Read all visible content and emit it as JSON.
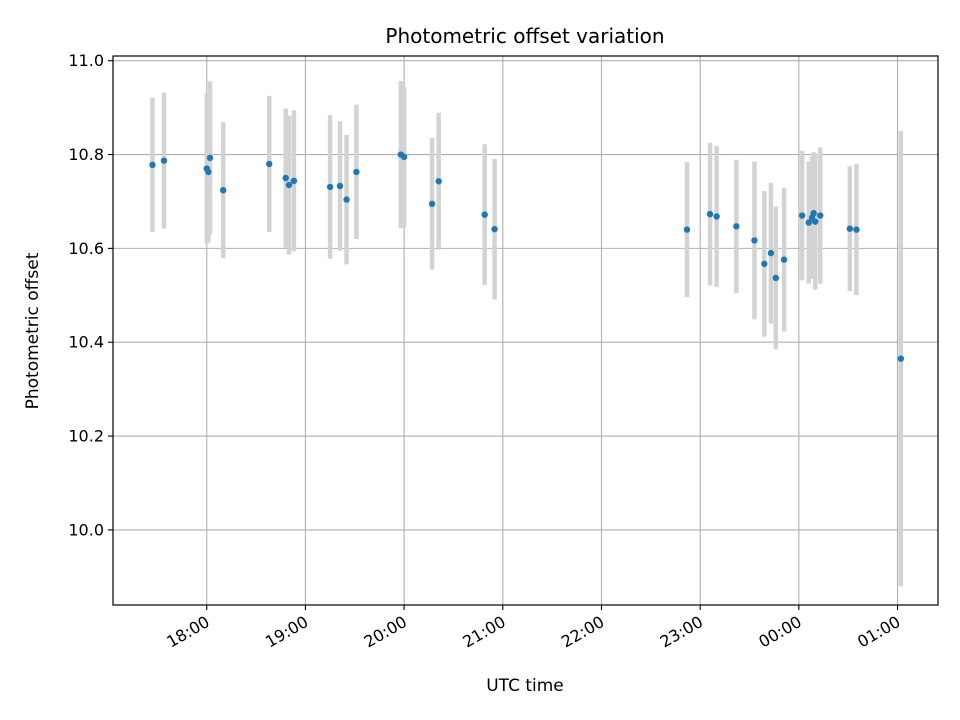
{
  "chart_data": {
    "type": "scatter",
    "title": "Photometric offset variation",
    "xlabel": "UTC time",
    "ylabel": "Photometric offset",
    "x_axis_kind": "time",
    "x_ticks": [
      "18:00",
      "19:00",
      "20:00",
      "21:00",
      "22:00",
      "23:00",
      "00:00",
      "01:00"
    ],
    "y_ticks": [
      "10.0",
      "10.2",
      "10.4",
      "10.6",
      "10.8",
      "11.0"
    ],
    "ylim": [
      9.84,
      11.01
    ],
    "xlim_hours": [
      17.05,
      25.41
    ],
    "grid": true,
    "colors": {
      "marker": "#1f77b4",
      "errorbar": "#d3d3d3",
      "grid": "#b0b0b0"
    },
    "points": [
      {
        "x": "17:27",
        "y": 10.778,
        "err": 0.143
      },
      {
        "x": "17:34",
        "y": 10.787,
        "err": 0.145
      },
      {
        "x": "18:00",
        "y": 10.77,
        "err": 0.16
      },
      {
        "x": "18:01",
        "y": 10.763,
        "err": 0.15
      },
      {
        "x": "18:02",
        "y": 10.793,
        "err": 0.163
      },
      {
        "x": "18:10",
        "y": 10.724,
        "err": 0.145
      },
      {
        "x": "18:38",
        "y": 10.78,
        "err": 0.145
      },
      {
        "x": "18:48",
        "y": 10.75,
        "err": 0.148
      },
      {
        "x": "18:50",
        "y": 10.735,
        "err": 0.148
      },
      {
        "x": "18:53",
        "y": 10.744,
        "err": 0.15
      },
      {
        "x": "19:15",
        "y": 10.731,
        "err": 0.153
      },
      {
        "x": "19:21",
        "y": 10.733,
        "err": 0.138
      },
      {
        "x": "19:25",
        "y": 10.704,
        "err": 0.138
      },
      {
        "x": "19:31",
        "y": 10.763,
        "err": 0.143
      },
      {
        "x": "19:58",
        "y": 10.8,
        "err": 0.157
      },
      {
        "x": "20:00",
        "y": 10.795,
        "err": 0.15
      },
      {
        "x": "20:17",
        "y": 10.695,
        "err": 0.14
      },
      {
        "x": "20:21",
        "y": 10.743,
        "err": 0.146
      },
      {
        "x": "20:49",
        "y": 10.672,
        "err": 0.15
      },
      {
        "x": "20:55",
        "y": 10.641,
        "err": 0.15
      },
      {
        "x": "22:52",
        "y": 10.64,
        "err": 0.144
      },
      {
        "x": "23:06",
        "y": 10.673,
        "err": 0.152
      },
      {
        "x": "23:10",
        "y": 10.668,
        "err": 0.15
      },
      {
        "x": "23:22",
        "y": 10.647,
        "err": 0.142
      },
      {
        "x": "23:33",
        "y": 10.617,
        "err": 0.168
      },
      {
        "x": "23:39",
        "y": 10.567,
        "err": 0.155
      },
      {
        "x": "23:43",
        "y": 10.59,
        "err": 0.15
      },
      {
        "x": "23:46",
        "y": 10.537,
        "err": 0.152
      },
      {
        "x": "23:51",
        "y": 10.576,
        "err": 0.153
      },
      {
        "x": "00:02",
        "y": 10.67,
        "err": 0.138
      },
      {
        "x": "00:06",
        "y": 10.655,
        "err": 0.13
      },
      {
        "x": "00:08",
        "y": 10.665,
        "err": 0.13
      },
      {
        "x": "00:09",
        "y": 10.675,
        "err": 0.13
      },
      {
        "x": "00:10",
        "y": 10.657,
        "err": 0.145
      },
      {
        "x": "00:13",
        "y": 10.67,
        "err": 0.145
      },
      {
        "x": "00:31",
        "y": 10.642,
        "err": 0.133
      },
      {
        "x": "00:35",
        "y": 10.64,
        "err": 0.14
      },
      {
        "x": "01:02",
        "y": 10.365,
        "err": 0.485
      }
    ]
  }
}
